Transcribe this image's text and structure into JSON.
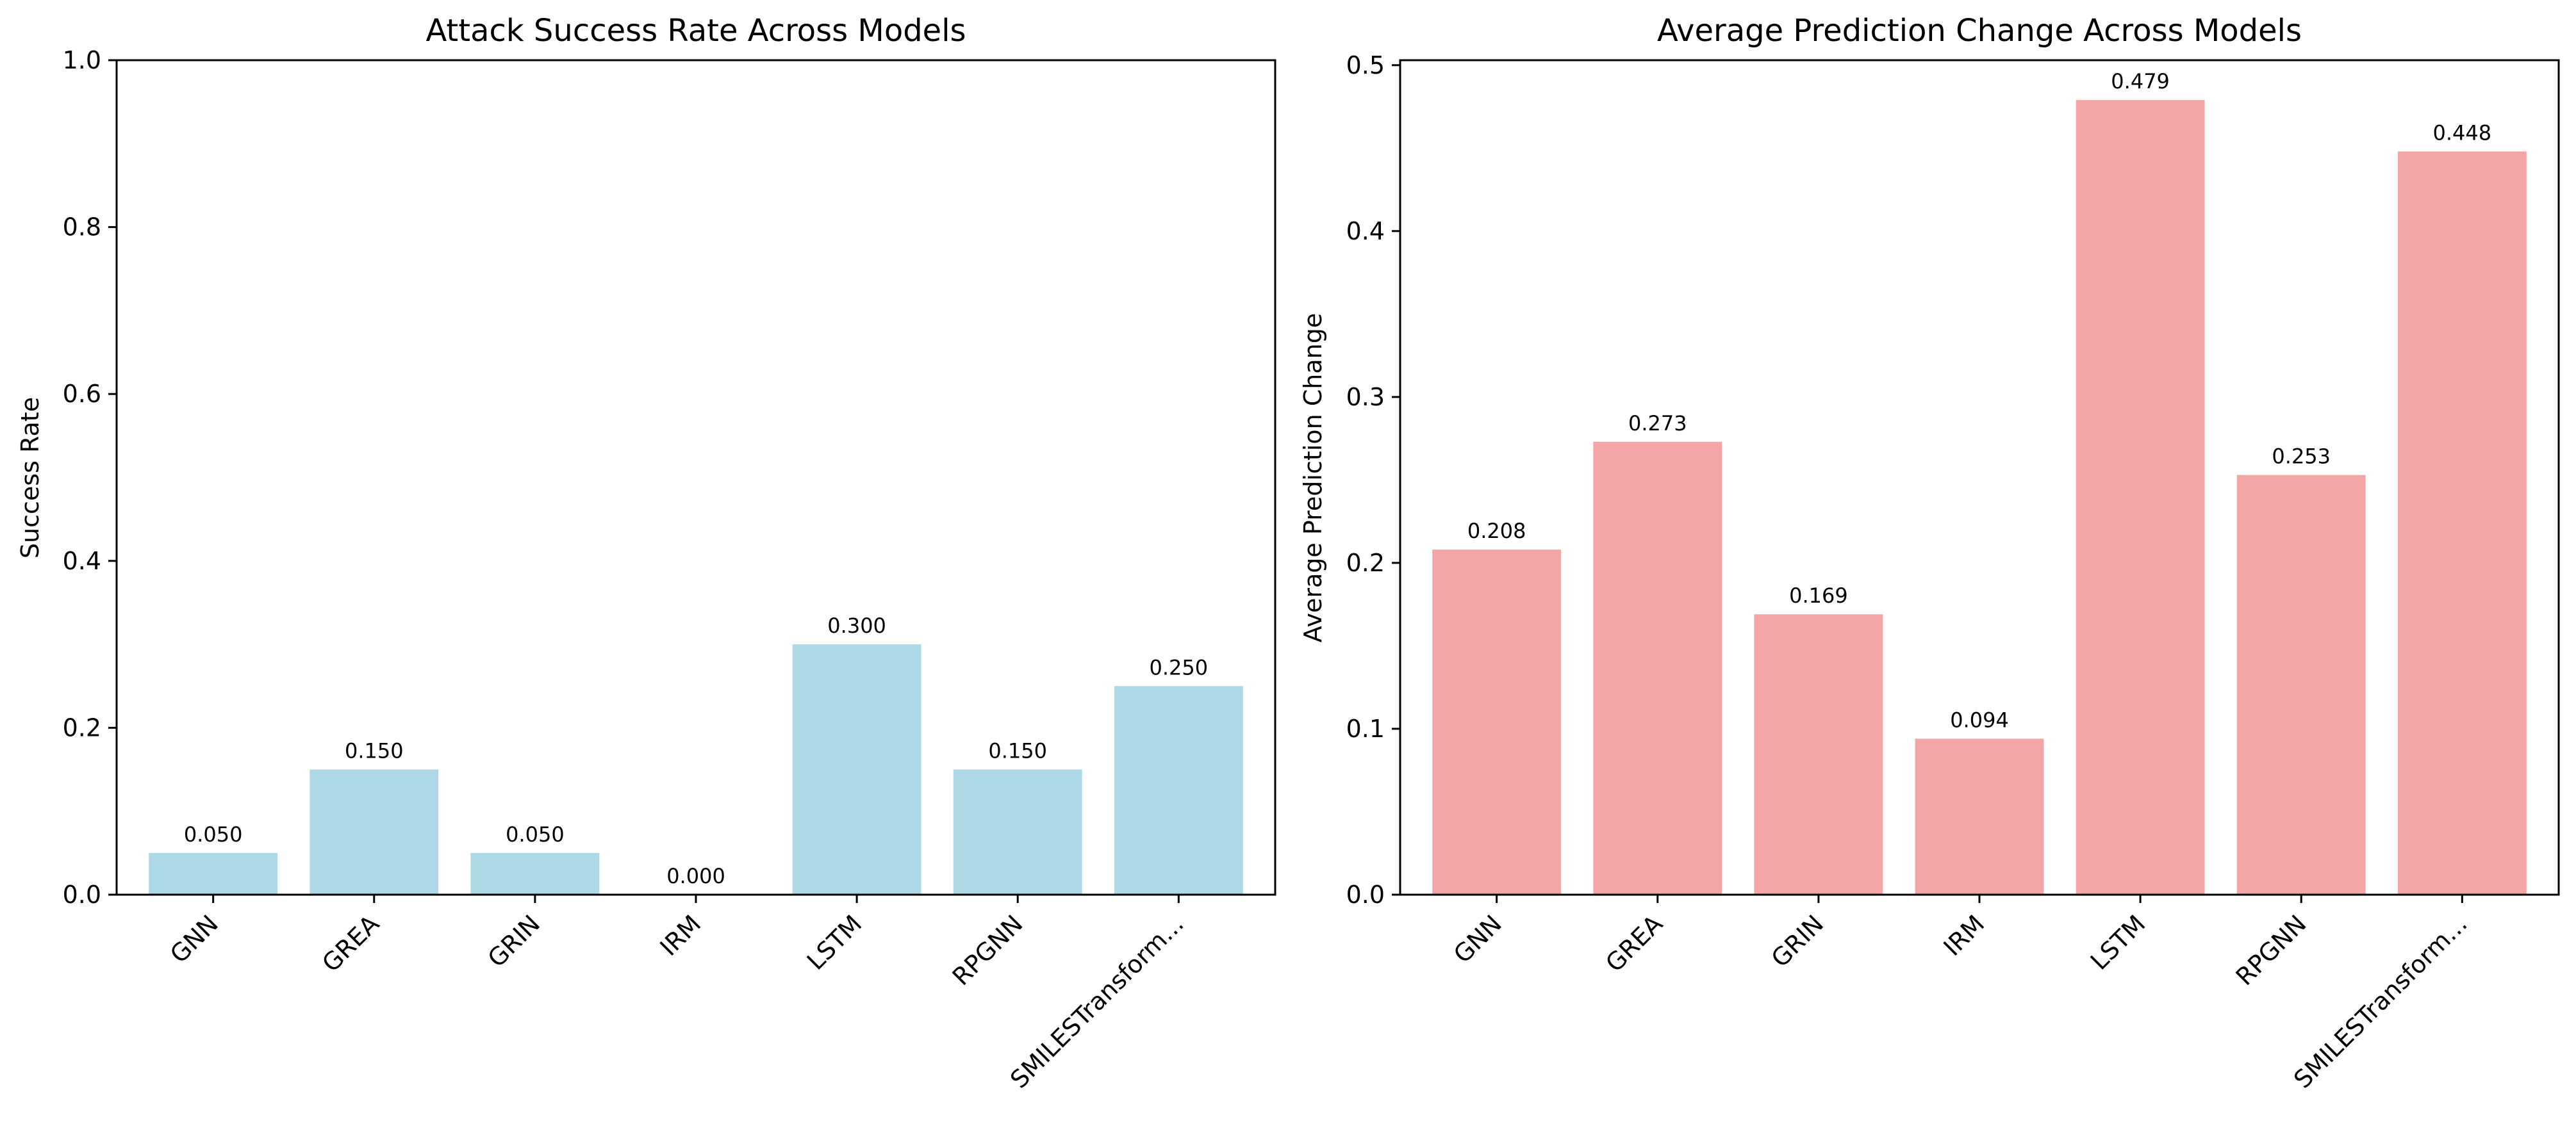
{
  "chart_data": [
    {
      "type": "bar",
      "title": "Attack Success Rate Across Models",
      "xlabel": "",
      "ylabel": "Success Rate",
      "categories": [
        "GNN",
        "GREA",
        "GRIN",
        "IRM",
        "LSTM",
        "RPGNN",
        "SMILESTransform..."
      ],
      "values": [
        0.05,
        0.15,
        0.05,
        0.0,
        0.3,
        0.15,
        0.25
      ],
      "value_labels": [
        "0.050",
        "0.150",
        "0.050",
        "0.000",
        "0.300",
        "0.150",
        "0.250"
      ],
      "ylim": [
        0,
        1.0
      ],
      "yticks": [
        0.0,
        0.2,
        0.4,
        0.6,
        0.8,
        1.0
      ],
      "ytick_labels": [
        "0.0",
        "0.2",
        "0.4",
        "0.6",
        "0.8",
        "1.0"
      ],
      "bar_color": "#add8e6",
      "grid": false,
      "legend": "none"
    },
    {
      "type": "bar",
      "title": "Average Prediction Change Across Models",
      "xlabel": "",
      "ylabel": "Average Prediction Change",
      "categories": [
        "GNN",
        "GREA",
        "GRIN",
        "IRM",
        "LSTM",
        "RPGNN",
        "SMILESTransform..."
      ],
      "values": [
        0.208,
        0.273,
        0.169,
        0.094,
        0.479,
        0.253,
        0.448
      ],
      "value_labels": [
        "0.208",
        "0.273",
        "0.169",
        "0.094",
        "0.479",
        "0.253",
        "0.448"
      ],
      "ylim": [
        0,
        0.503
      ],
      "yticks": [
        0.0,
        0.1,
        0.2,
        0.3,
        0.4,
        0.5
      ],
      "ytick_labels": [
        "0.0",
        "0.1",
        "0.2",
        "0.3",
        "0.4",
        "0.5"
      ],
      "bar_color": "#f4a6a6",
      "grid": false,
      "legend": "none"
    }
  ]
}
